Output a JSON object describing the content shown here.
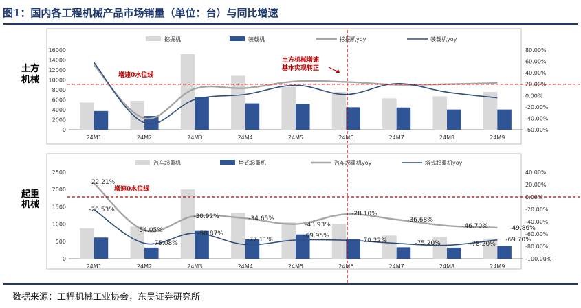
{
  "title": "图1：国内各工程机械产品市场销量（单位：台）与同比增速",
  "source": "数据来源：工程机械工业协会，东吴证券研究所",
  "colors": {
    "header": "#1f3b70",
    "bar_light": "#d9d9d9",
    "bar_dark": "#2f5597",
    "line_grey": "#a6a6a6",
    "line_dark": "#2f4f7f",
    "ref_red": "#c00000"
  },
  "chart_data": [
    {
      "type": "bar",
      "side_label": [
        "土方",
        "机械"
      ],
      "categories": [
        "24M1",
        "24M2",
        "24M3",
        "24M4",
        "24M5",
        "24M6",
        "24M7",
        "24M8",
        "24M9"
      ],
      "series": [
        {
          "name": "挖掘机",
          "kind": "bar",
          "axis": "left",
          "values": [
            5450,
            5800,
            15200,
            10850,
            8600,
            7600,
            6300,
            6700,
            7600
          ]
        },
        {
          "name": "装载机",
          "kind": "bar",
          "axis": "left",
          "values": [
            3750,
            2750,
            6600,
            5300,
            5200,
            4500,
            4450,
            4050,
            4050
          ]
        },
        {
          "name": "挖掘机yoy",
          "kind": "line",
          "axis": "right",
          "values": [
            0.54,
            -0.4,
            0.12,
            0.13,
            0.25,
            0.24,
            0.19,
            0.2,
            0.22
          ]
        },
        {
          "name": "装载机yoy",
          "kind": "line",
          "axis": "right",
          "values": [
            0.58,
            -0.48,
            -0.07,
            0.02,
            0.18,
            0.02,
            0.21,
            0.06,
            -0.04
          ]
        }
      ],
      "left_axis": {
        "ylim": [
          0,
          16000
        ],
        "ticks": [
          0,
          2000,
          4000,
          6000,
          8000,
          10000,
          12000,
          14000,
          16000
        ]
      },
      "right_axis": {
        "ylim": [
          -0.6,
          0.8
        ],
        "ticks": [
          -0.6,
          -0.4,
          -0.2,
          0.0,
          0.2,
          0.4,
          0.6,
          0.8
        ],
        "format": "percent2"
      },
      "zero_ref_label": "增速0水位线",
      "annotation": [
        "土方机械增速",
        "基本实现转正"
      ],
      "ref_value": 0.2,
      "legend": "top"
    },
    {
      "type": "bar",
      "side_label": [
        "起重",
        "机械"
      ],
      "categories": [
        "24M1",
        "24M2",
        "24M3",
        "24M4",
        "24M5",
        "24M6",
        "24M7",
        "24M8",
        "24M9"
      ],
      "series": [
        {
          "name": "汽车起重机",
          "kind": "bar",
          "axis": "left",
          "values": [
            880,
            930,
            2000,
            1320,
            1050,
            1010,
            670,
            620,
            580
          ]
        },
        {
          "name": "塔式起重机",
          "kind": "bar",
          "axis": "left",
          "values": [
            610,
            320,
            800,
            560,
            700,
            560,
            330,
            320,
            370
          ]
        },
        {
          "name": "汽车起重机yoy",
          "kind": "line",
          "axis": "right",
          "values": [
            0.2221,
            -0.5405,
            -0.3092,
            -0.3465,
            -0.4393,
            -0.281,
            -0.3668,
            -0.467,
            -0.4986
          ],
          "labels": [
            "22.21%",
            "-54.05%",
            "-30.92%",
            "-34.65%",
            "-43.93%",
            "-28.10%",
            "-36.68%",
            "-46.70%",
            "-49.86%"
          ]
        },
        {
          "name": "塔式起重机yoy",
          "kind": "line",
          "axis": "right",
          "values": [
            -0.2053,
            -0.7508,
            -0.5887,
            -0.7711,
            -0.6995,
            -0.7022,
            -0.752,
            -0.782,
            -0.697
          ],
          "labels": [
            "-20.53%",
            "-75.08%",
            "-58.87%",
            "-77.11%",
            "-69.95%",
            "-70.22%",
            "-75.20%",
            "-78.20%",
            "-69.70%"
          ]
        }
      ],
      "left_axis": {
        "ylim": [
          0,
          2500
        ],
        "ticks": [
          0,
          500,
          1000,
          1500,
          2000,
          2500
        ]
      },
      "right_axis": {
        "ylim": [
          -1.0,
          0.4
        ],
        "ticks": [
          -1.0,
          -0.8,
          -0.6,
          -0.4,
          -0.2,
          0.0,
          0.2,
          0.4
        ],
        "format": "percent2"
      },
      "zero_ref_label": "增速0水位线",
      "ref_value": 0.0,
      "legend": "top"
    }
  ]
}
